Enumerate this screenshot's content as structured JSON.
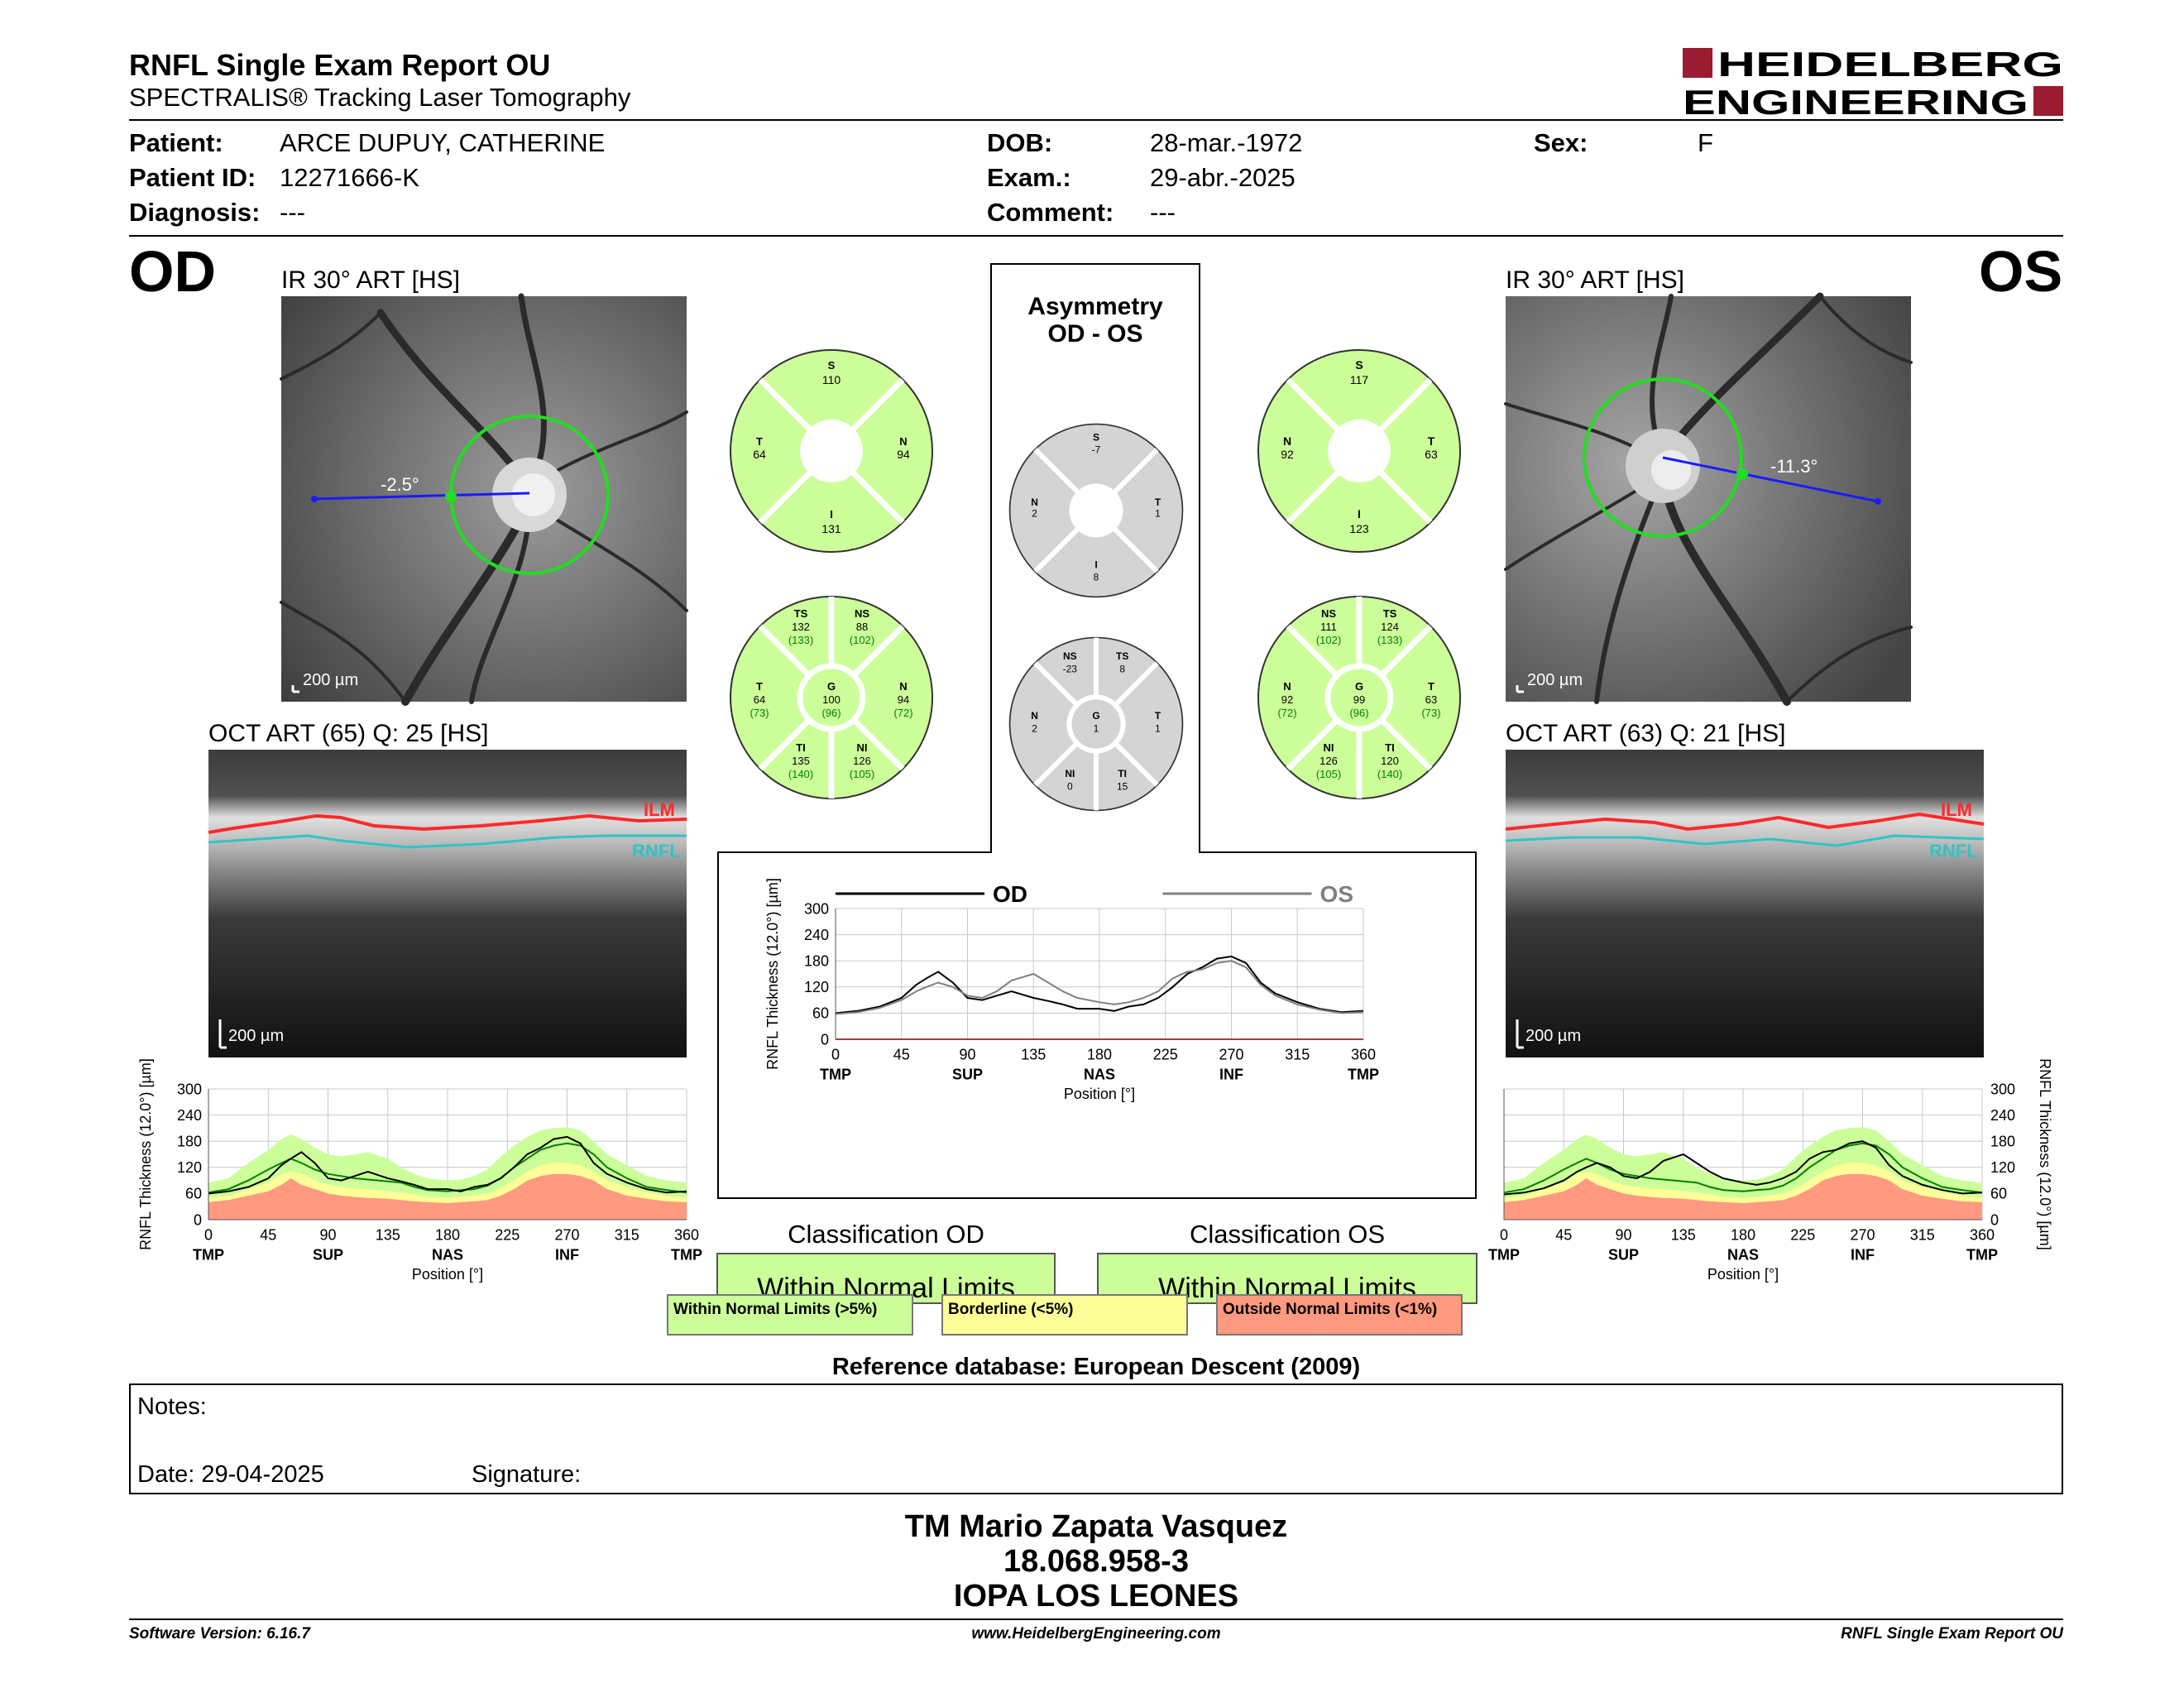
{
  "header": {
    "title": "RNFL Single Exam Report OU",
    "subtitle": "SPECTRALIS® Tracking Laser Tomography",
    "logo_line1": "HEIDELBERG",
    "logo_line2": "ENGINEERING"
  },
  "patient": {
    "patient_label": "Patient:",
    "patient_value": "ARCE DUPUY, CATHERINE",
    "id_label": "Patient ID:",
    "id_value": "12271666-K",
    "diagnosis_label": "Diagnosis:",
    "diagnosis_value": "---",
    "dob_label": "DOB:",
    "dob_value": "28-mar.-1972",
    "exam_label": "Exam.:",
    "exam_value": "29-abr.-2025",
    "comment_label": "Comment:",
    "comment_value": "---",
    "sex_label": "Sex:",
    "sex_value": "F"
  },
  "od": {
    "eye": "OD",
    "ir_title": "IR 30° ART [HS]",
    "angle": "-2.5°",
    "ir_scale": "200 µm",
    "oct_title": "OCT ART (65) Q: 25 [HS]",
    "oct_scale": "200 µm",
    "ilm": "ILM",
    "rnfl": "RNFL",
    "sectors4": {
      "S": "110",
      "T": "64",
      "N": "94",
      "I": "131"
    },
    "sectors6": {
      "TS": "132",
      "TS_ref": "(133)",
      "NS": "88",
      "NS_ref": "(102)",
      "T": "64",
      "T_ref": "(73)",
      "G": "100",
      "G_ref": "(96)",
      "N": "94",
      "N_ref": "(72)",
      "TI": "135",
      "TI_ref": "(140)",
      "NI": "126",
      "NI_ref": "(105)"
    },
    "classification_title": "Classification OD",
    "classification_value": "Within Normal Limits"
  },
  "os": {
    "eye": "OS",
    "ir_title": "IR 30° ART [HS]",
    "angle": "-11.3°",
    "ir_scale": "200 µm",
    "oct_title": "OCT ART (63) Q: 21 [HS]",
    "oct_scale": "200 µm",
    "ilm": "ILM",
    "rnfl": "RNFL",
    "sectors4": {
      "S": "117",
      "N": "92",
      "T": "63",
      "I": "123"
    },
    "sectors6": {
      "NS": "111",
      "NS_ref": "(102)",
      "TS": "124",
      "TS_ref": "(133)",
      "N": "92",
      "N_ref": "(72)",
      "G": "99",
      "G_ref": "(96)",
      "T": "63",
      "T_ref": "(73)",
      "NI": "126",
      "NI_ref": "(105)",
      "TI": "120",
      "TI_ref": "(140)"
    },
    "classification_title": "Classification OS",
    "classification_value": "Within Normal Limits"
  },
  "asymmetry": {
    "title_line1": "Asymmetry",
    "title_line2": "OD - OS",
    "sectors4": {
      "S": "-7",
      "N": "2",
      "T": "1",
      "I": "8"
    },
    "sectors6": {
      "NS": "-23",
      "TS": "8",
      "N": "2",
      "G": "1",
      "T": "1",
      "NI": "0",
      "TI": "15"
    }
  },
  "legend": {
    "wnl": "Within Normal Limits (>5%)",
    "borderline": "Borderline (<5%)",
    "onl": "Outside Normal Limits (<1%)"
  },
  "colors": {
    "normal_green": "#ccff99",
    "borderline_yellow": "#ffff99",
    "outside_red": "#ff9980",
    "gray_sector": "#d4d4d4",
    "logo_red": "#9b1b30",
    "od_line": "#000000",
    "os_line": "#808080",
    "normal_mean": "#008000"
  },
  "reference": "Reference database: European Descent (2009)",
  "notes": {
    "notes_label": "Notes:",
    "date_label": "Date: 29-04-2025",
    "signature_label": "Signature:"
  },
  "signer": {
    "name": "TM Mario Zapata Vasquez",
    "id": "18.068.958-3",
    "place": "IOPA LOS LEONES"
  },
  "footer": {
    "version": "Software Version: 6.16.7",
    "website": "www.HeidelbergEngineering.com",
    "report": "RNFL Single Exam Report OU"
  },
  "chart_data": [
    {
      "type": "line",
      "id": "od-profile",
      "ylabel": "RNFL Thickness (12.0°) [µm]",
      "xlabel": "Position [°]",
      "ylim": [
        0,
        300
      ],
      "xlim": [
        0,
        360
      ],
      "xticks": [
        "0",
        "45",
        "90",
        "135",
        "180",
        "225",
        "270",
        "315",
        "360"
      ],
      "yticks": [
        "0",
        "60",
        "120",
        "180",
        "240",
        "300"
      ],
      "sector_labels": [
        "TMP",
        "SUP",
        "NAS",
        "INF",
        "TMP"
      ],
      "x": [
        0,
        15,
        30,
        45,
        55,
        62,
        70,
        80,
        90,
        100,
        110,
        120,
        135,
        145,
        155,
        165,
        180,
        190,
        200,
        210,
        220,
        230,
        240,
        250,
        260,
        270,
        280,
        290,
        300,
        315,
        330,
        345,
        360
      ],
      "series": [
        {
          "name": "OD",
          "values": [
            60,
            65,
            75,
            95,
            125,
            140,
            155,
            130,
            95,
            90,
            100,
            110,
            95,
            88,
            80,
            70,
            70,
            65,
            75,
            80,
            95,
            120,
            150,
            165,
            185,
            190,
            175,
            130,
            105,
            85,
            70,
            62,
            65
          ]
        }
      ],
      "normal_mean": [
        62,
        70,
        90,
        115,
        130,
        140,
        130,
        115,
        105,
        100,
        95,
        92,
        88,
        85,
        75,
        68,
        65,
        68,
        70,
        78,
        95,
        120,
        140,
        160,
        170,
        175,
        170,
        150,
        120,
        95,
        75,
        68,
        62
      ],
      "normal_upper": [
        85,
        95,
        130,
        160,
        185,
        195,
        185,
        165,
        150,
        145,
        150,
        155,
        140,
        120,
        105,
        95,
        90,
        92,
        100,
        115,
        145,
        170,
        190,
        205,
        210,
        212,
        205,
        180,
        150,
        125,
        100,
        90,
        85
      ],
      "normal_border": [
        50,
        55,
        70,
        85,
        105,
        110,
        105,
        90,
        80,
        75,
        72,
        70,
        65,
        62,
        58,
        52,
        50,
        52,
        55,
        60,
        72,
        90,
        110,
        125,
        130,
        130,
        125,
        110,
        90,
        75,
        62,
        55,
        50
      ],
      "normal_lower": [
        40,
        45,
        55,
        65,
        80,
        95,
        80,
        70,
        60,
        55,
        52,
        50,
        48,
        45,
        42,
        40,
        38,
        40,
        42,
        45,
        55,
        70,
        90,
        100,
        105,
        105,
        100,
        90,
        70,
        55,
        48,
        42,
        40
      ]
    },
    {
      "type": "line",
      "id": "asymmetry-profile",
      "ylabel": "RNFL Thickness (12.0°) [µm]",
      "xlabel": "Position [°]",
      "ylim": [
        0,
        300
      ],
      "xlim": [
        0,
        360
      ],
      "xticks": [
        "0",
        "45",
        "90",
        "135",
        "180",
        "225",
        "270",
        "315",
        "360"
      ],
      "yticks": [
        "0",
        "60",
        "120",
        "180",
        "240",
        "300"
      ],
      "sector_labels": [
        "TMP",
        "SUP",
        "NAS",
        "INF",
        "TMP"
      ],
      "x": [
        0,
        15,
        30,
        45,
        55,
        62,
        70,
        80,
        90,
        100,
        110,
        120,
        135,
        145,
        155,
        165,
        180,
        190,
        200,
        210,
        220,
        230,
        240,
        250,
        260,
        270,
        280,
        290,
        300,
        315,
        330,
        345,
        360
      ],
      "series": [
        {
          "name": "OD",
          "values": [
            60,
            65,
            75,
            95,
            125,
            140,
            155,
            130,
            95,
            90,
            100,
            110,
            95,
            88,
            80,
            70,
            70,
            65,
            75,
            80,
            95,
            120,
            150,
            165,
            185,
            190,
            175,
            130,
            105,
            85,
            70,
            62,
            65
          ]
        },
        {
          "name": "OS",
          "values": [
            58,
            62,
            72,
            90,
            110,
            120,
            130,
            120,
            100,
            95,
            110,
            135,
            150,
            130,
            110,
            95,
            85,
            80,
            85,
            95,
            110,
            140,
            155,
            160,
            175,
            180,
            165,
            125,
            100,
            80,
            68,
            60,
            62
          ]
        }
      ]
    },
    {
      "type": "line",
      "id": "os-profile",
      "ylabel": "RNFL Thickness (12.0°) [µm]",
      "xlabel": "Position [°]",
      "ylim": [
        0,
        300
      ],
      "xlim": [
        0,
        360
      ],
      "xticks": [
        "0",
        "45",
        "90",
        "135",
        "180",
        "225",
        "270",
        "315",
        "360"
      ],
      "yticks": [
        "0",
        "60",
        "120",
        "180",
        "240",
        "300"
      ],
      "sector_labels": [
        "TMP",
        "SUP",
        "NAS",
        "INF",
        "TMP"
      ],
      "x": [
        0,
        15,
        30,
        45,
        55,
        62,
        70,
        80,
        90,
        100,
        110,
        120,
        135,
        145,
        155,
        165,
        180,
        190,
        200,
        210,
        220,
        230,
        240,
        250,
        260,
        270,
        280,
        290,
        300,
        315,
        330,
        345,
        360
      ],
      "series": [
        {
          "name": "OS",
          "values": [
            58,
            62,
            72,
            90,
            110,
            120,
            130,
            120,
            100,
            95,
            110,
            135,
            150,
            130,
            110,
            95,
            85,
            80,
            85,
            95,
            110,
            140,
            155,
            160,
            175,
            180,
            165,
            125,
            100,
            80,
            68,
            60,
            62
          ]
        }
      ],
      "normal_mean": [
        62,
        70,
        90,
        115,
        130,
        140,
        130,
        115,
        105,
        100,
        95,
        92,
        88,
        85,
        75,
        68,
        65,
        68,
        70,
        78,
        95,
        120,
        140,
        160,
        170,
        175,
        170,
        150,
        120,
        95,
        75,
        68,
        62
      ],
      "normal_upper": [
        85,
        95,
        130,
        160,
        185,
        195,
        185,
        165,
        150,
        145,
        150,
        155,
        140,
        120,
        105,
        95,
        90,
        92,
        100,
        115,
        145,
        170,
        190,
        205,
        210,
        212,
        205,
        180,
        150,
        125,
        100,
        90,
        85
      ],
      "normal_border": [
        50,
        55,
        70,
        85,
        105,
        110,
        105,
        90,
        80,
        75,
        72,
        70,
        65,
        62,
        58,
        52,
        50,
        52,
        55,
        60,
        72,
        90,
        110,
        125,
        130,
        130,
        125,
        110,
        90,
        75,
        62,
        55,
        50
      ],
      "normal_lower": [
        40,
        45,
        55,
        65,
        80,
        95,
        80,
        70,
        60,
        55,
        52,
        50,
        48,
        45,
        42,
        40,
        38,
        40,
        42,
        45,
        55,
        70,
        90,
        100,
        105,
        105,
        100,
        90,
        70,
        55,
        48,
        42,
        40
      ]
    }
  ]
}
